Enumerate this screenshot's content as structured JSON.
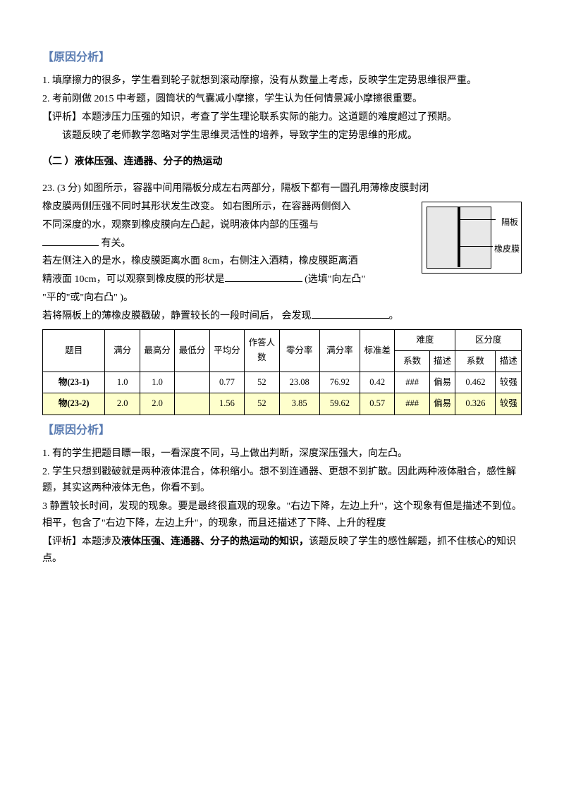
{
  "section1": {
    "title": "【原因分析】",
    "p1": "1. 填摩擦力的很多，学生看到轮子就想到滚动摩擦，没有从数量上考虑，反映学生定势思维很严重。",
    "p2": "2.  考前刚做 2015 中考题，圆筒状的气囊减小摩擦，学生认为任何情景减小摩擦很重要。",
    "p3": "【评析】本题涉压力压强的知识，考查了学生理论联系实际的能力。这道题的难度超过了预期。",
    "p4": "该题反映了老师教学忽略对学生思维灵活性的培养，导致学生的定势思维的形成。"
  },
  "subsec": {
    "title": "（二  ）液体压强、连通器、分子的热运动"
  },
  "q23": {
    "lead": "23.  (3  分)   如图所示，容器中间用隔板分成左右两部分，隔板下都有一圆孔用薄橡皮膜封闭",
    "line2a": "橡皮膜两侧压强不同时其形状发生改变。    如右图所示，在容器两侧倒入",
    "line2b": "不同深度的水，观察到橡皮膜向左凸起，说明液体内部的压强与",
    "line2c": " 有关。",
    "line3a": "若左侧注入的是水，橡皮膜距离水面 8cm，右侧注入酒精，橡皮膜距离酒",
    "line3b": "精液面 10cm，可以观察到橡皮膜的形状是",
    "line3c": " (选填\"向左凸\"",
    "line3d": "\"平的\"或\"向右凸\" )。",
    "line4a": "若将隔板上的薄橡皮膜戳破，静置较长的一段时间后，  会发现",
    "line4b": "。",
    "diagram": {
      "label1": "隔板",
      "label2": "橡皮膜"
    }
  },
  "table": {
    "headers": {
      "c0": "题目",
      "c1": "满分",
      "c2": "最高分",
      "c3": "最低分",
      "c4": "平均分",
      "c5": "作答人数",
      "c6": "零分率",
      "c7": "满分率",
      "c8": "标准差",
      "g1": "难度",
      "g2": "区分度",
      "g1a": "系数",
      "g1b": "描述",
      "g2a": "系数",
      "g2b": "描述"
    },
    "rows": [
      {
        "label": "物(23-1)",
        "full": "1.0",
        "max": "1.0",
        "min": "",
        "avg": "0.77",
        "n": "52",
        "zero": "23.08",
        "fullrate": "76.92",
        "sd": "0.42",
        "dcoef": "###",
        "ddesc": "偏易",
        "rcoef": "0.462",
        "rdesc": "较强"
      },
      {
        "label": "物(23-2)",
        "full": "2.0",
        "max": "2.0",
        "min": "",
        "avg": "1.56",
        "n": "52",
        "zero": "3.85",
        "fullrate": "59.62",
        "sd": "0.57",
        "dcoef": "###",
        "ddesc": "偏易",
        "rcoef": "0.326",
        "rdesc": "较强"
      }
    ]
  },
  "section2": {
    "title": "【原因分析】",
    "p1": "1. 有的学生把题目瞟一眼，一看深度不同，马上做出判断，深度深压强大，向左凸。",
    "p2": "2.  学生只想到戳破就是两种液体混合，体积缩小。想不到连通器、更想不到扩散。因此两种液体融合，感性解题，其实这两种液体无色，你看不到。",
    "p3": "3    静置较长时间，发现的现象。要是最终很直观的现象。\"右边下降，左边上升\"，这个现象有但是描述不到位。相平，包含了\"右边下降，左边上升\"，的现象，而且还描述了下降、上升的程度",
    "p4a": "【评析】本题涉及",
    "p4b": "液体压强、连通器、分子的热运动的知识，",
    "p4c": "该题反映了学生的感性解题，抓不住核心的知识点。"
  }
}
